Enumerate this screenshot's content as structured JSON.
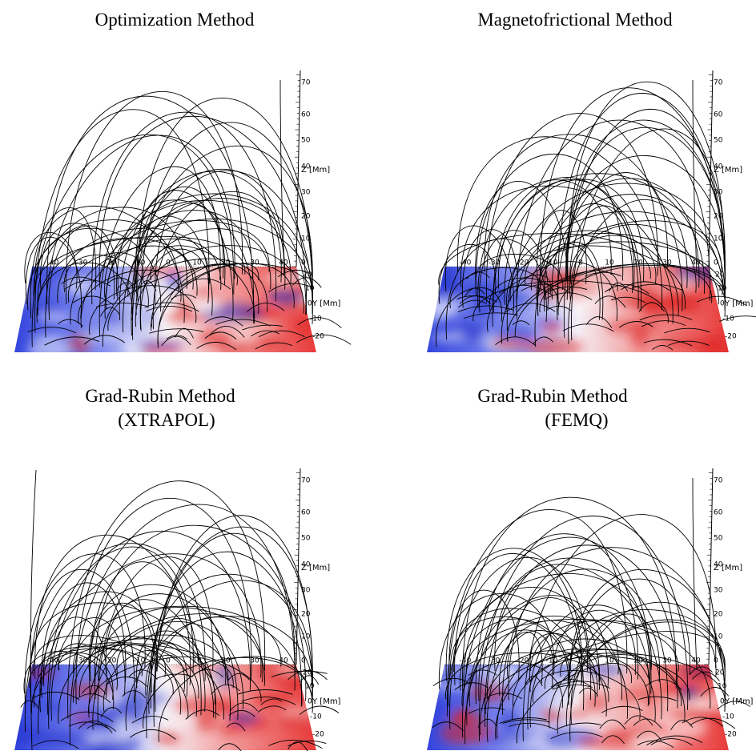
{
  "panels": [
    {
      "title": [
        "Optimization Method"
      ]
    },
    {
      "title": [
        "Magnetofrictional Method"
      ]
    },
    {
      "title": [
        "Grad-Rubin Method",
        "(XTRAPOL)"
      ]
    },
    {
      "title": [
        "Grad-Rubin Method",
        "(FEMQ)"
      ]
    }
  ],
  "axes": {
    "z_label": "Z [Mm]",
    "y_label": "Y [Mm]",
    "z_ticks": [
      "70",
      "60",
      "50",
      "40",
      "30",
      "20",
      "10",
      "0"
    ],
    "y_ticks": [
      "20",
      "10",
      "0",
      "-10",
      "-20"
    ],
    "x_ticks": [
      "-40",
      "-30",
      "-20",
      "-10",
      "0",
      "10",
      "20",
      "30",
      "40"
    ]
  }
}
